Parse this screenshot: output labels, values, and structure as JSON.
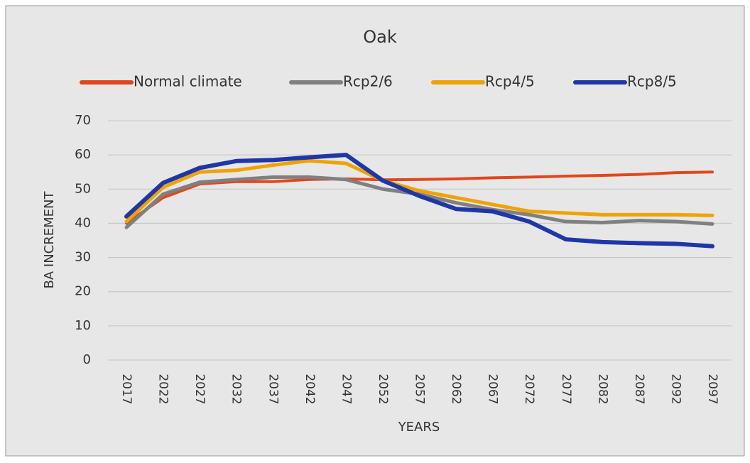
{
  "chart_data": {
    "type": "line",
    "title": "Oak",
    "x_label": "YEARS",
    "y_label": "BA INCREMENT",
    "categories": [
      "2017",
      "2022",
      "2027",
      "2032",
      "2037",
      "2042",
      "2047",
      "2052",
      "2057",
      "2062",
      "2067",
      "2072",
      "2077",
      "2082",
      "2087",
      "2092",
      "2097"
    ],
    "series": [
      {
        "name": "Normal climate",
        "color": "#e2461c",
        "values": [
          40,
          47.5,
          51.5,
          52.2,
          52.2,
          52.8,
          53,
          52.7,
          52.8,
          53,
          53.3,
          53.5,
          53.8,
          54,
          54.3,
          54.8,
          55
        ]
      },
      {
        "name": "Rcp2/6",
        "color": "#808080",
        "values": [
          38.8,
          48.5,
          52,
          52.8,
          53.5,
          53.5,
          52.8,
          50,
          48.5,
          46,
          44,
          42.5,
          40.5,
          40.2,
          40.8,
          40.5,
          39.8
        ]
      },
      {
        "name": "Rcp4/5",
        "color": "#eea400",
        "values": [
          40.5,
          50.5,
          55,
          55.5,
          57,
          58.3,
          57.5,
          52.5,
          49.5,
          47.5,
          45.5,
          43.5,
          43,
          42.5,
          42.5,
          42.5,
          42.3
        ]
      },
      {
        "name": "Rcp8/5",
        "color": "#1f37a6",
        "values": [
          42,
          51.8,
          56.2,
          58.2,
          58.5,
          59.3,
          60,
          52.5,
          48,
          44.2,
          43.5,
          40.5,
          35.3,
          34.5,
          34.2,
          34,
          33.3
        ]
      }
    ],
    "ylim": [
      0,
      70
    ],
    "yticks": [
      0,
      10,
      20,
      30,
      40,
      50,
      60,
      70
    ],
    "grid": true,
    "legend": "top"
  }
}
